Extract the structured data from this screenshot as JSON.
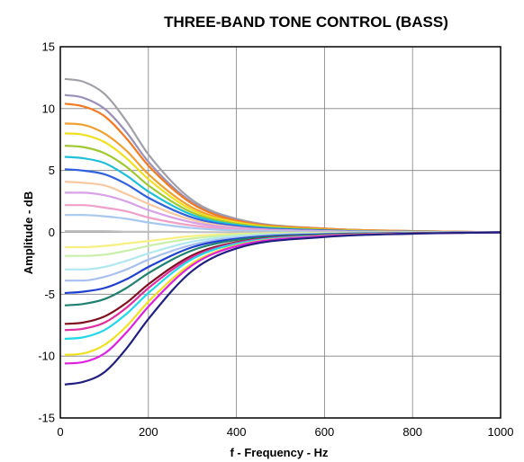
{
  "chart_data": {
    "type": "line",
    "title": "THREE-BAND TONE CONTROL (BASS)",
    "xlabel": "f - Frequency - Hz",
    "ylabel": "Amplitude - dB",
    "xlim": [
      0,
      1000
    ],
    "ylim": [
      -15,
      15
    ],
    "xticks": [
      0,
      200,
      400,
      600,
      800,
      1000
    ],
    "yticks": [
      -15,
      -10,
      -5,
      0,
      5,
      10,
      15
    ],
    "grid": true,
    "legend": "none",
    "series": [
      {
        "color": "#a0a0a8",
        "values_x": [
          10,
          50,
          100,
          150,
          200,
          300,
          400,
          600,
          800,
          1000
        ],
        "values_y": [
          12.4,
          12.2,
          11.2,
          9.0,
          6.3,
          2.6,
          1.1,
          0.3,
          0.1,
          0.0
        ]
      },
      {
        "color": "#9a90b8",
        "values_x": [
          10,
          50,
          100,
          150,
          200,
          300,
          400,
          600,
          800,
          1000
        ],
        "values_y": [
          11.1,
          10.9,
          10.0,
          8.1,
          5.7,
          2.4,
          1.0,
          0.3,
          0.1,
          0.0
        ]
      },
      {
        "color": "#f47a20",
        "values_x": [
          10,
          50,
          100,
          150,
          200,
          300,
          400,
          600,
          800,
          1000
        ],
        "values_y": [
          10.4,
          10.2,
          9.4,
          7.6,
          5.4,
          2.3,
          0.95,
          0.3,
          0.1,
          0.0
        ]
      },
      {
        "color": "#f0a030",
        "values_x": [
          10,
          50,
          100,
          150,
          200,
          300,
          400,
          600,
          800,
          1000
        ],
        "values_y": [
          8.8,
          8.7,
          8.0,
          6.6,
          4.7,
          2.0,
          0.85,
          0.25,
          0.1,
          0.0
        ]
      },
      {
        "color": "#f0e020",
        "values_x": [
          10,
          50,
          100,
          150,
          200,
          300,
          400,
          600,
          800,
          1000
        ],
        "values_y": [
          8.0,
          7.9,
          7.3,
          6.0,
          4.3,
          1.8,
          0.8,
          0.2,
          0.05,
          0.0
        ]
      },
      {
        "color": "#a0c830",
        "values_x": [
          10,
          50,
          100,
          150,
          200,
          300,
          400,
          600,
          800,
          1000
        ],
        "values_y": [
          7.0,
          6.9,
          6.4,
          5.3,
          3.8,
          1.6,
          0.7,
          0.2,
          0.05,
          0.0
        ]
      },
      {
        "color": "#20c0d8",
        "values_x": [
          10,
          50,
          100,
          150,
          200,
          300,
          400,
          600,
          800,
          1000
        ],
        "values_y": [
          6.1,
          6.0,
          5.6,
          4.6,
          3.3,
          1.4,
          0.6,
          0.15,
          0.05,
          0.0
        ]
      },
      {
        "color": "#3060e0",
        "values_x": [
          10,
          50,
          100,
          150,
          200,
          300,
          400,
          600,
          800,
          1000
        ],
        "values_y": [
          5.1,
          5.0,
          4.7,
          3.9,
          2.8,
          1.2,
          0.5,
          0.15,
          0.05,
          0.0
        ]
      },
      {
        "color": "#f8c8a0",
        "values_x": [
          10,
          50,
          100,
          150,
          200,
          300,
          400,
          600,
          800,
          1000
        ],
        "values_y": [
          4.1,
          4.0,
          3.8,
          3.1,
          2.3,
          1.0,
          0.4,
          0.1,
          0.03,
          0.0
        ]
      },
      {
        "color": "#d8a0e8",
        "values_x": [
          10,
          50,
          100,
          150,
          200,
          300,
          400,
          600,
          800,
          1000
        ],
        "values_y": [
          3.2,
          3.2,
          3.0,
          2.5,
          1.8,
          0.8,
          0.35,
          0.1,
          0.03,
          0.0
        ]
      },
      {
        "color": "#f0a0c8",
        "values_x": [
          10,
          50,
          100,
          150,
          200,
          300,
          400,
          600,
          800,
          1000
        ],
        "values_y": [
          2.2,
          2.2,
          2.0,
          1.7,
          1.2,
          0.55,
          0.25,
          0.07,
          0.02,
          0.0
        ]
      },
      {
        "color": "#a8c8f0",
        "values_x": [
          10,
          50,
          100,
          150,
          200,
          300,
          400,
          600,
          800,
          1000
        ],
        "values_y": [
          1.4,
          1.4,
          1.3,
          1.1,
          0.8,
          0.35,
          0.15,
          0.05,
          0.02,
          0.0
        ]
      },
      {
        "color": "#c0c0c0",
        "values_x": [
          10,
          50,
          100,
          150,
          200,
          300,
          400,
          600,
          800,
          1000
        ],
        "values_y": [
          0.1,
          0.1,
          0.1,
          0.05,
          0.05,
          0.02,
          0.01,
          0.0,
          0.0,
          0.0
        ]
      },
      {
        "color": "#f8f080",
        "values_x": [
          10,
          50,
          100,
          150,
          200,
          300,
          400,
          600,
          800,
          1000
        ],
        "values_y": [
          -1.2,
          -1.2,
          -1.1,
          -0.9,
          -0.7,
          -0.3,
          -0.13,
          -0.04,
          -0.01,
          0.0
        ]
      },
      {
        "color": "#c8f0a8",
        "values_x": [
          10,
          50,
          100,
          150,
          200,
          300,
          400,
          600,
          800,
          1000
        ],
        "values_y": [
          -1.9,
          -1.9,
          -1.8,
          -1.5,
          -1.1,
          -0.5,
          -0.2,
          -0.06,
          -0.02,
          0.0
        ]
      },
      {
        "color": "#b0e8f0",
        "values_x": [
          10,
          50,
          100,
          150,
          200,
          300,
          400,
          600,
          800,
          1000
        ],
        "values_y": [
          -3.0,
          -3.0,
          -2.8,
          -2.3,
          -1.7,
          -0.75,
          -0.32,
          -0.1,
          -0.03,
          0.0
        ]
      },
      {
        "color": "#a8c0f0",
        "values_x": [
          10,
          50,
          100,
          150,
          200,
          300,
          400,
          600,
          800,
          1000
        ],
        "values_y": [
          -3.9,
          -3.9,
          -3.6,
          -3.0,
          -2.2,
          -1.0,
          -0.42,
          -0.12,
          -0.04,
          0.0
        ]
      },
      {
        "color": "#2040d0",
        "values_x": [
          10,
          50,
          100,
          150,
          200,
          300,
          400,
          600,
          800,
          1000
        ],
        "values_y": [
          -4.9,
          -4.8,
          -4.5,
          -3.8,
          -2.8,
          -1.2,
          -0.52,
          -0.15,
          -0.05,
          0.0
        ]
      },
      {
        "color": "#208070",
        "values_x": [
          10,
          50,
          100,
          150,
          200,
          300,
          400,
          600,
          800,
          1000
        ],
        "values_y": [
          -5.9,
          -5.8,
          -5.4,
          -4.5,
          -3.3,
          -1.45,
          -0.62,
          -0.18,
          -0.05,
          0.0
        ]
      },
      {
        "color": "#801020",
        "values_x": [
          10,
          50,
          100,
          150,
          200,
          300,
          400,
          600,
          800,
          1000
        ],
        "values_y": [
          -7.4,
          -7.3,
          -6.8,
          -5.7,
          -4.2,
          -1.85,
          -0.8,
          -0.23,
          -0.07,
          0.0
        ]
      },
      {
        "color": "#e030a0",
        "values_x": [
          10,
          50,
          100,
          150,
          200,
          300,
          400,
          600,
          800,
          1000
        ],
        "values_y": [
          -7.9,
          -7.8,
          -7.3,
          -6.1,
          -4.5,
          -2.0,
          -0.85,
          -0.25,
          -0.07,
          0.0
        ]
      },
      {
        "color": "#20d8e8",
        "values_x": [
          10,
          50,
          100,
          150,
          200,
          300,
          400,
          600,
          800,
          1000
        ],
        "values_y": [
          -8.6,
          -8.5,
          -7.9,
          -6.6,
          -4.9,
          -2.15,
          -0.92,
          -0.27,
          -0.08,
          0.0
        ]
      },
      {
        "color": "#f0e020",
        "values_x": [
          10,
          50,
          100,
          150,
          200,
          300,
          400,
          600,
          800,
          1000
        ],
        "values_y": [
          -9.9,
          -9.8,
          -9.1,
          -7.6,
          -5.6,
          -2.5,
          -1.05,
          -0.3,
          -0.09,
          0.0
        ]
      },
      {
        "color": "#e020e0",
        "values_x": [
          10,
          50,
          100,
          150,
          200,
          300,
          400,
          600,
          800,
          1000
        ],
        "values_y": [
          -10.6,
          -10.5,
          -9.8,
          -8.1,
          -6.0,
          -2.65,
          -1.12,
          -0.32,
          -0.1,
          0.0
        ]
      },
      {
        "color": "#202080",
        "values_x": [
          10,
          50,
          100,
          150,
          200,
          300,
          400,
          600,
          800,
          1000
        ],
        "values_y": [
          -12.3,
          -12.1,
          -11.3,
          -9.4,
          -7.0,
          -3.1,
          -1.3,
          -0.38,
          -0.11,
          0.0
        ]
      }
    ]
  }
}
